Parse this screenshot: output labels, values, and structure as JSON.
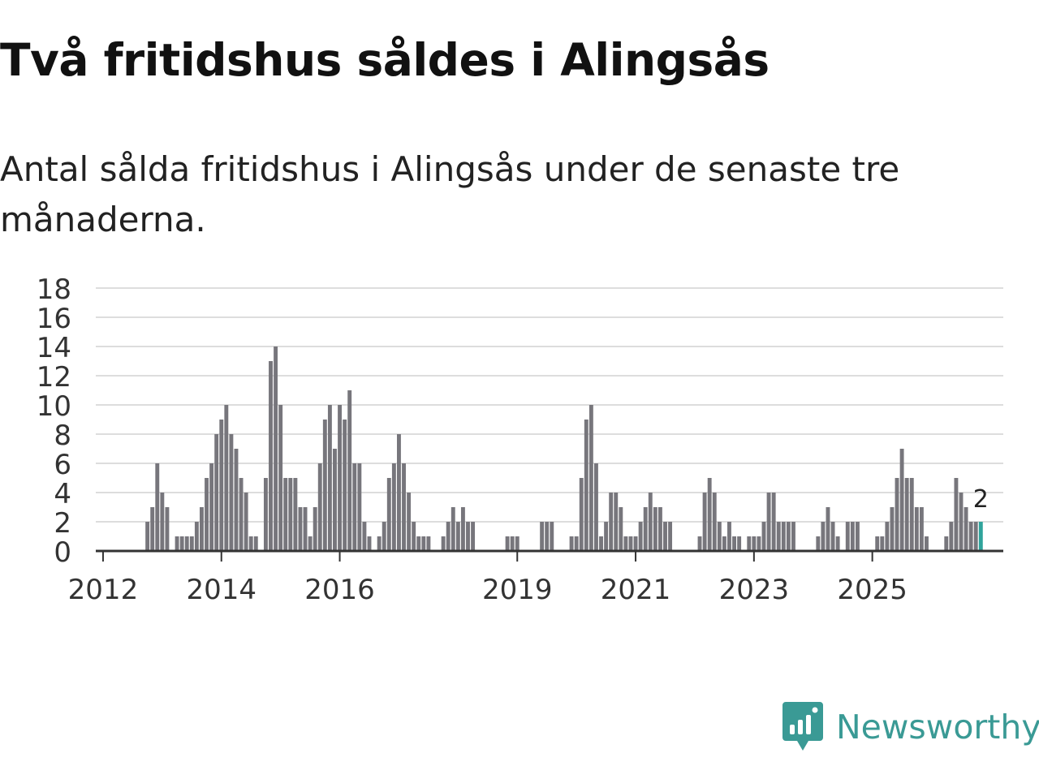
{
  "header": {
    "title": "Två fritidshus såldes i Alingsås",
    "subtitle": "Antal sålda fritidshus i Alingsås under de senaste tre månaderna."
  },
  "brand": {
    "name": "Newsworthy",
    "icon": "newsworthy-logo-icon",
    "color": "#3a9a95"
  },
  "chart_data": {
    "type": "bar",
    "title": "Två fritidshus såldes i Alingsås",
    "subtitle": "Antal sålda fritidshus i Alingsås under de senaste tre månaderna.",
    "xlabel": "",
    "ylabel": "",
    "ylim": [
      0,
      18
    ],
    "yticks": [
      "0",
      "2",
      "4",
      "6",
      "8",
      "10",
      "12",
      "14",
      "16",
      "18"
    ],
    "xticks": [
      {
        "label": "2012",
        "month_index": 0
      },
      {
        "label": "2014",
        "month_index": 24
      },
      {
        "label": "2016",
        "month_index": 48
      },
      {
        "label": "2019",
        "month_index": 84
      },
      {
        "label": "2021",
        "month_index": 108
      },
      {
        "label": "2023",
        "month_index": 132
      },
      {
        "label": "2025",
        "month_index": 156
      }
    ],
    "start": "2011-09",
    "grid": true,
    "bar_color": "#77767c",
    "highlight_color": "#2fa39b",
    "last_label": "2",
    "values": [
      0,
      0,
      0,
      0,
      0,
      0,
      0,
      0,
      0,
      0,
      0,
      0,
      0,
      2,
      3,
      6,
      4,
      3,
      0,
      1,
      1,
      1,
      1,
      2,
      3,
      5,
      6,
      8,
      9,
      10,
      8,
      7,
      5,
      4,
      1,
      1,
      0,
      5,
      13,
      14,
      10,
      5,
      5,
      5,
      3,
      3,
      1,
      3,
      6,
      9,
      10,
      7,
      10,
      9,
      11,
      6,
      6,
      2,
      1,
      0,
      1,
      2,
      5,
      6,
      8,
      6,
      4,
      2,
      1,
      1,
      1,
      0,
      0,
      1,
      2,
      3,
      2,
      3,
      2,
      2,
      0,
      0,
      0,
      0,
      0,
      0,
      1,
      1,
      1,
      0,
      0,
      0,
      0,
      2,
      2,
      2,
      0,
      0,
      0,
      1,
      1,
      5,
      9,
      10,
      6,
      1,
      2,
      4,
      4,
      3,
      1,
      1,
      1,
      2,
      3,
      4,
      3,
      3,
      2,
      2,
      0,
      0,
      0,
      0,
      0,
      1,
      4,
      5,
      4,
      2,
      1,
      2,
      1,
      1,
      0,
      1,
      1,
      1,
      2,
      4,
      4,
      2,
      2,
      2,
      2,
      0,
      0,
      0,
      0,
      1,
      2,
      3,
      2,
      1,
      0,
      2,
      2,
      2,
      0,
      0,
      0,
      1,
      1,
      2,
      3,
      5,
      7,
      5,
      5,
      3,
      3,
      1,
      0,
      0,
      0,
      1,
      2,
      5,
      4,
      3,
      2,
      2,
      2
    ]
  }
}
